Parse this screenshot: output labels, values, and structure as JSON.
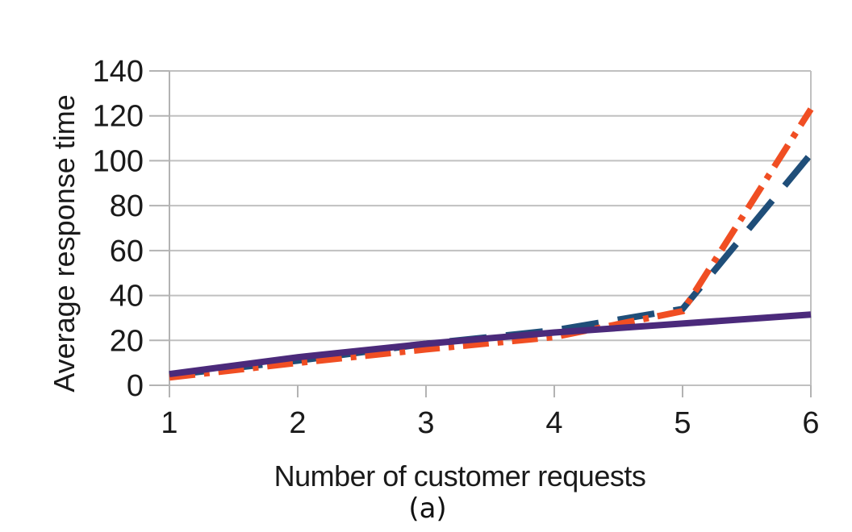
{
  "figure": {
    "caption": "(a)",
    "background_color": "#ffffff"
  },
  "chart_data": {
    "type": "line",
    "title": "",
    "xlabel": "Number of customer requests",
    "ylabel": "Average response time",
    "x": [
      1,
      2,
      3,
      4,
      5,
      6
    ],
    "xticks": [
      1,
      2,
      3,
      4,
      5,
      6
    ],
    "yticks": [
      0,
      20,
      40,
      60,
      80,
      100,
      120,
      140
    ],
    "xlim": [
      1,
      6
    ],
    "ylim": [
      0,
      140
    ],
    "grid": "horizontal",
    "legend": "none",
    "markers": "none",
    "grid_color": "#c0c0c0",
    "axis_color": "#b3b3b3",
    "text_color": "#1a1a1a",
    "series": [
      {
        "name": "blue-dashed-line",
        "style": "dashed",
        "color": "#1F4E79",
        "width": 8,
        "values": [
          4.5,
          11,
          18.5,
          24.5,
          34,
          103
        ]
      },
      {
        "name": "orange-dash-dot-line",
        "style": "dash-dot",
        "color": "#F04E23",
        "width": 8,
        "values": [
          3.5,
          10,
          16,
          21.5,
          33,
          123
        ]
      },
      {
        "name": "purple-solid-line",
        "style": "solid",
        "color": "#4B2A7B",
        "width": 8,
        "values": [
          5,
          12.5,
          18.5,
          23.5,
          27.5,
          31.5
        ]
      }
    ]
  }
}
